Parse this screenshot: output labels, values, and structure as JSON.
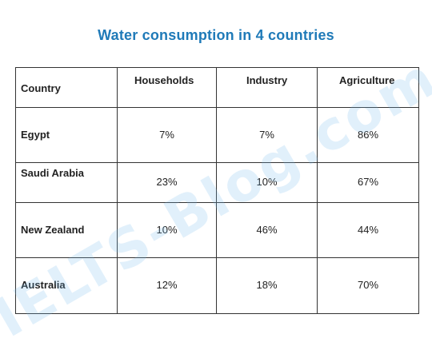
{
  "title": "Water consumption in 4 countries",
  "watermark": "IELTS-Blog.com",
  "table": {
    "headers": [
      "Country",
      "Households",
      "Industry",
      "Agriculture"
    ],
    "rows": [
      {
        "country": "Egypt",
        "households": "7%",
        "industry": "7%",
        "agriculture": "86%"
      },
      {
        "country": "Saudi Arabia",
        "households": "23%",
        "industry": "10%",
        "agriculture": "67%"
      },
      {
        "country": "New Zealand",
        "households": "10%",
        "industry": "46%",
        "agriculture": "44%"
      },
      {
        "country": "Australia",
        "households": "12%",
        "industry": "18%",
        "agriculture": "70%"
      }
    ]
  },
  "colors": {
    "title": "#1f7ab8",
    "border": "#333333",
    "text": "#222222",
    "watermark": "#78b9eb"
  }
}
